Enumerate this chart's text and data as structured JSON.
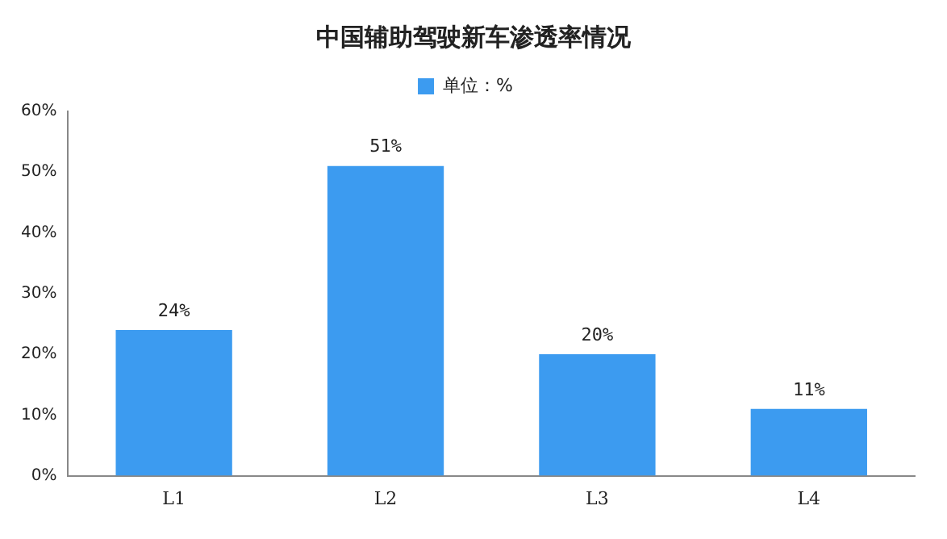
{
  "chart_data": {
    "type": "bar",
    "title": "中国辅助驾驶新车渗透率情况",
    "categories": [
      "L1",
      "L2",
      "L3",
      "L4"
    ],
    "series": [
      {
        "name": "单位：%",
        "color": "#3c9bf0",
        "values": [
          24,
          51,
          20,
          11
        ],
        "value_labels": [
          "24%",
          "51%",
          "20%",
          "11%"
        ]
      }
    ],
    "ylim": [
      0,
      60
    ],
    "yticks": [
      {
        "value": 0,
        "label": "0%"
      },
      {
        "value": 10,
        "label": "10%"
      },
      {
        "value": 20,
        "label": "20%"
      },
      {
        "value": 30,
        "label": "30%"
      },
      {
        "value": 40,
        "label": "40%"
      },
      {
        "value": 50,
        "label": "50%"
      },
      {
        "value": 60,
        "label": "60%"
      }
    ],
    "grid": false,
    "legend": "top"
  }
}
